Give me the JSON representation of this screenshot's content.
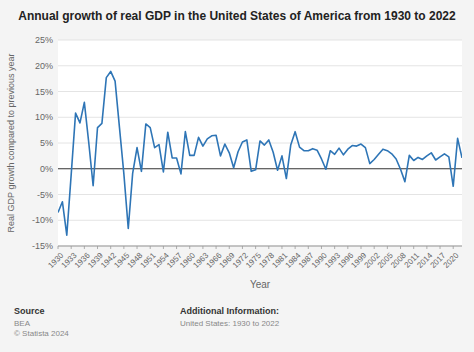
{
  "chart_data": {
    "type": "line",
    "title": "Annual growth of real GDP in the United States of America from 1930 to 2022",
    "x_label": "Year",
    "y_label": "Real GDP growth compared to previous year",
    "color": "#2E75B6",
    "grid": true,
    "xlim": [
      1930,
      2022
    ],
    "xticks": [
      1930,
      1933,
      1936,
      1939,
      1942,
      1945,
      1948,
      1951,
      1954,
      1957,
      1960,
      1963,
      1966,
      1969,
      1972,
      1975,
      1978,
      1981,
      1984,
      1987,
      1990,
      1993,
      1996,
      1999,
      2002,
      2005,
      2008,
      2011,
      2014,
      2017,
      2020
    ],
    "ylim": [
      -15,
      25
    ],
    "yticks": [
      {
        "value": -15,
        "label": "-15%"
      },
      {
        "value": -10,
        "label": "-10%"
      },
      {
        "value": -5,
        "label": "-5%"
      },
      {
        "value": 0,
        "label": "0%"
      },
      {
        "value": 5,
        "label": "5%"
      },
      {
        "value": 10,
        "label": "10%"
      },
      {
        "value": 15,
        "label": "15%"
      },
      {
        "value": 20,
        "label": "20%"
      },
      {
        "value": 25,
        "label": "25%"
      }
    ],
    "annotations": [
      "Source",
      "BEA\n© Statista 2024",
      "Additional Information:",
      "United States: 1930 to 2022"
    ],
    "x": [
      1930,
      1931,
      1932,
      1933,
      1934,
      1935,
      1936,
      1937,
      1938,
      1939,
      1940,
      1941,
      1942,
      1943,
      1944,
      1945,
      1946,
      1947,
      1948,
      1949,
      1950,
      1951,
      1952,
      1953,
      1954,
      1955,
      1956,
      1957,
      1958,
      1959,
      1960,
      1961,
      1962,
      1963,
      1964,
      1965,
      1966,
      1967,
      1968,
      1969,
      1970,
      1971,
      1972,
      1973,
      1974,
      1975,
      1976,
      1977,
      1978,
      1979,
      1980,
      1981,
      1982,
      1983,
      1984,
      1985,
      1986,
      1987,
      1988,
      1989,
      1990,
      1991,
      1992,
      1993,
      1994,
      1995,
      1996,
      1997,
      1998,
      1999,
      2000,
      2001,
      2002,
      2003,
      2004,
      2005,
      2006,
      2007,
      2008,
      2009,
      2010,
      2011,
      2012,
      2013,
      2014,
      2015,
      2016,
      2017,
      2018,
      2019,
      2020,
      2021,
      2022
    ],
    "values": [
      -8.5,
      -6.4,
      -12.9,
      -1.2,
      10.8,
      8.9,
      12.9,
      5.1,
      -3.3,
      8.0,
      8.8,
      17.7,
      18.9,
      17.0,
      8.0,
      -1.0,
      -11.6,
      -0.9,
      4.1,
      -0.5,
      8.7,
      8.0,
      4.1,
      4.7,
      -0.6,
      7.1,
      2.1,
      2.1,
      -1.0,
      7.2,
      2.6,
      2.6,
      6.1,
      4.4,
      5.8,
      6.4,
      6.5,
      2.5,
      4.8,
      3.1,
      0.2,
      3.3,
      5.2,
      5.6,
      -0.5,
      -0.2,
      5.4,
      4.6,
      5.6,
      3.2,
      -0.3,
      2.5,
      -1.9,
      4.6,
      7.2,
      4.2,
      3.5,
      3.5,
      3.9,
      3.6,
      1.9,
      -0.1,
      3.5,
      2.8,
      4.0,
      2.7,
      3.8,
      4.5,
      4.4,
      4.8,
      4.1,
      1.0,
      1.8,
      2.8,
      3.8,
      3.5,
      2.9,
      1.9,
      -0.1,
      -2.5,
      2.6,
      1.6,
      2.2,
      1.8,
      2.5,
      3.1,
      1.7,
      2.3,
      2.9,
      2.3,
      -3.4,
      5.9,
      2.1
    ]
  }
}
